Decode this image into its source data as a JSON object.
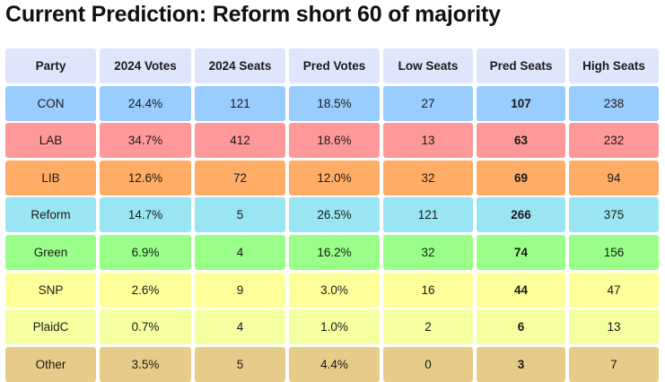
{
  "title": "Current Prediction: Reform short 60 of majority",
  "colors": {
    "header": "#dfe6fb",
    "CON": "#99ccff",
    "LAB": "#ff9999",
    "LIB": "#ffad66",
    "Reform": "#99e6f2",
    "Green": "#99ff88",
    "SNP": "#ffff99",
    "PlaidC": "#f4ffa0",
    "Other": "#e6cc88"
  },
  "table": {
    "headers": [
      "Party",
      "2024 Votes",
      "2024 Seats",
      "Pred Votes",
      "Low Seats",
      "Pred Seats",
      "High Seats"
    ],
    "rows": [
      {
        "key": "CON",
        "cells": [
          "CON",
          "24.4%",
          "121",
          "18.5%",
          "27",
          "107",
          "238"
        ]
      },
      {
        "key": "LAB",
        "cells": [
          "LAB",
          "34.7%",
          "412",
          "18.6%",
          "13",
          "63",
          "232"
        ]
      },
      {
        "key": "LIB",
        "cells": [
          "LIB",
          "12.6%",
          "72",
          "12.0%",
          "32",
          "69",
          "94"
        ]
      },
      {
        "key": "Reform",
        "cells": [
          "Reform",
          "14.7%",
          "5",
          "26.5%",
          "121",
          "266",
          "375"
        ]
      },
      {
        "key": "Green",
        "cells": [
          "Green",
          "6.9%",
          "4",
          "16.2%",
          "32",
          "74",
          "156"
        ]
      },
      {
        "key": "SNP",
        "cells": [
          "SNP",
          "2.6%",
          "9",
          "3.0%",
          "16",
          "44",
          "47"
        ]
      },
      {
        "key": "PlaidC",
        "cells": [
          "PlaidC",
          "0.7%",
          "4",
          "1.0%",
          "2",
          "6",
          "13"
        ]
      },
      {
        "key": "Other",
        "cells": [
          "Other",
          "3.5%",
          "5",
          "4.4%",
          "0",
          "3",
          "7"
        ]
      }
    ]
  }
}
